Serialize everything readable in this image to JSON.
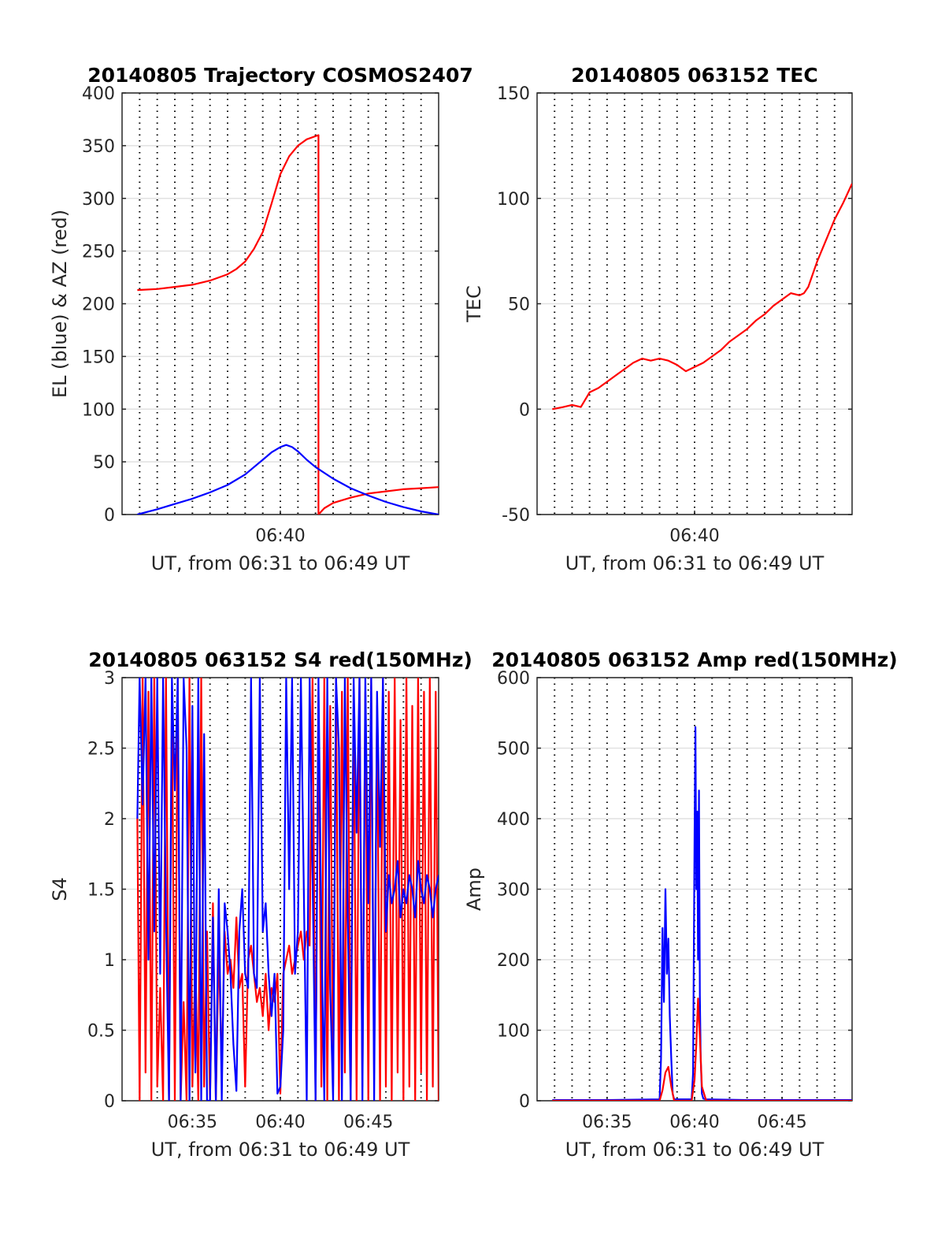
{
  "chart_data": [
    {
      "type": "line",
      "title": "20140805 Trajectory COSMOS2407",
      "xlabel": "UT, from 06:31 to 06:49 UT",
      "ylabel": "EL (blue) & AZ (red)",
      "x_range": [
        "06:31",
        "06:49"
      ],
      "ylim": [
        0,
        400
      ],
      "y_ticks": [
        "0",
        "50",
        "100",
        "150",
        "200",
        "250",
        "300",
        "350",
        "400"
      ],
      "x_tick_labels": [
        "06:40"
      ],
      "grid": true,
      "series": [
        {
          "color": "#ff0000",
          "x": [
            "06:31:52",
            "06:33:00",
            "06:34:00",
            "06:35:00",
            "06:36:00",
            "06:37:00",
            "06:37:30",
            "06:38:00",
            "06:38:30",
            "06:39:00",
            "06:39:30",
            "06:40:00",
            "06:40:30",
            "06:41:00",
            "06:41:30",
            "06:42:10",
            "06:42:10",
            "06:42:30",
            "06:43:00",
            "06:44:00",
            "06:45:00",
            "06:46:00",
            "06:47:00",
            "06:48:00",
            "06:49:00"
          ],
          "values": [
            213,
            214,
            216,
            218,
            222,
            228,
            233,
            240,
            252,
            268,
            295,
            323,
            340,
            350,
            356,
            360,
            0,
            6,
            11,
            16,
            20,
            22,
            24,
            25,
            26
          ]
        },
        {
          "color": "#0000ff",
          "x": [
            "06:31:52",
            "06:33:00",
            "06:34:00",
            "06:35:00",
            "06:36:00",
            "06:37:00",
            "06:38:00",
            "06:38:30",
            "06:39:00",
            "06:39:30",
            "06:40:00",
            "06:40:20",
            "06:40:40",
            "06:41:00",
            "06:41:30",
            "06:42:00",
            "06:43:00",
            "06:44:00",
            "06:45:00",
            "06:46:00",
            "06:47:00",
            "06:48:00",
            "06:49:00"
          ],
          "values": [
            0,
            5,
            10,
            15,
            21,
            28,
            38,
            45,
            52,
            59,
            64,
            66,
            64,
            60,
            52,
            45,
            34,
            25,
            18,
            12,
            7,
            3,
            0
          ]
        }
      ]
    },
    {
      "type": "line",
      "title": "20140805 063152 TEC",
      "xlabel": "UT, from 06:31 to 06:49 UT",
      "ylabel": "TEC",
      "x_range": [
        "06:31",
        "06:49"
      ],
      "ylim": [
        -50,
        150
      ],
      "y_ticks": [
        "-50",
        "0",
        "50",
        "100",
        "150"
      ],
      "x_tick_labels": [
        "06:40"
      ],
      "grid": true,
      "series": [
        {
          "color": "#ff0000",
          "x": [
            "06:31:52",
            "06:32:30",
            "06:33:00",
            "06:33:30",
            "06:34:00",
            "06:34:30",
            "06:35:00",
            "06:35:30",
            "06:36:00",
            "06:36:30",
            "06:37:00",
            "06:37:30",
            "06:38:00",
            "06:38:30",
            "06:39:00",
            "06:39:30",
            "06:40:00",
            "06:40:30",
            "06:41:00",
            "06:41:30",
            "06:42:00",
            "06:42:30",
            "06:43:00",
            "06:43:30",
            "06:44:00",
            "06:44:30",
            "06:45:00",
            "06:45:30",
            "06:46:00",
            "06:46:15",
            "06:46:30",
            "06:47:00",
            "06:47:30",
            "06:48:00",
            "06:48:30",
            "06:49:00"
          ],
          "values": [
            0,
            1,
            2,
            1,
            8,
            10,
            13,
            16,
            19,
            22,
            24,
            23,
            24,
            23,
            21,
            18,
            20,
            22,
            25,
            28,
            32,
            35,
            38,
            42,
            45,
            49,
            52,
            55,
            54,
            55,
            58,
            70,
            80,
            90,
            98,
            107
          ]
        }
      ]
    },
    {
      "type": "line",
      "title": "20140805 063152 S4 red(150MHz)",
      "xlabel": "UT, from 06:31 to 06:49 UT",
      "ylabel": "S4",
      "x_range": [
        "06:31",
        "06:49"
      ],
      "ylim": [
        0,
        3
      ],
      "y_ticks": [
        "0",
        "0.5",
        "1",
        "1.5",
        "2",
        "2.5",
        "3"
      ],
      "x_tick_labels": [
        "06:35",
        "06:40",
        "06:45"
      ],
      "grid": true,
      "series": [
        {
          "color": "#ff0000",
          "x": [
            "06:31:52",
            "06:32:00",
            "06:32:10",
            "06:32:20",
            "06:32:30",
            "06:32:40",
            "06:32:50",
            "06:33:00",
            "06:33:10",
            "06:33:20",
            "06:33:30",
            "06:33:40",
            "06:33:50",
            "06:34:00",
            "06:34:10",
            "06:34:20",
            "06:34:30",
            "06:34:40",
            "06:34:50",
            "06:35:00",
            "06:35:10",
            "06:35:20",
            "06:35:30",
            "06:35:40",
            "06:35:50",
            "06:36:00",
            "06:36:10",
            "06:36:20",
            "06:36:30",
            "06:36:40",
            "06:36:50",
            "06:37:00",
            "06:37:10",
            "06:37:20",
            "06:37:30",
            "06:37:40",
            "06:37:50",
            "06:38:00",
            "06:38:10",
            "06:38:20",
            "06:38:30",
            "06:38:40",
            "06:38:50",
            "06:39:00",
            "06:39:10",
            "06:39:20",
            "06:39:30",
            "06:39:40",
            "06:39:50",
            "06:40:00",
            "06:40:10",
            "06:40:20",
            "06:40:30",
            "06:40:40",
            "06:40:50",
            "06:41:00",
            "06:41:10",
            "06:41:20",
            "06:41:30",
            "06:41:40",
            "06:41:50",
            "06:42:00",
            "06:42:10",
            "06:42:20",
            "06:42:30",
            "06:42:40",
            "06:42:50",
            "06:43:00",
            "06:43:10",
            "06:43:20",
            "06:43:30",
            "06:43:40",
            "06:43:50",
            "06:44:00",
            "06:44:10",
            "06:44:20",
            "06:44:30",
            "06:44:40",
            "06:44:50",
            "06:45:00",
            "06:45:10",
            "06:45:20",
            "06:45:30",
            "06:45:40",
            "06:45:50",
            "06:46:00",
            "06:46:10",
            "06:46:20",
            "06:46:30",
            "06:46:40",
            "06:46:50",
            "06:47:00",
            "06:47:10",
            "06:47:20",
            "06:47:30",
            "06:47:40",
            "06:47:50",
            "06:48:00",
            "06:48:10",
            "06:48:20",
            "06:48:30",
            "06:48:40",
            "06:48:50",
            "06:49:00"
          ],
          "values": [
            2.0,
            0.0,
            3.0,
            0.2,
            2.9,
            0.0,
            3.0,
            0.1,
            0.8,
            0.0,
            3.0,
            0.0,
            2.9,
            0.0,
            3.0,
            0.0,
            0.7,
            0.0,
            3.0,
            0.1,
            1.0,
            0.0,
            3.0,
            0.1,
            1.2,
            0.0,
            1.4,
            0.0,
            1.1,
            0.2,
            1.2,
            0.9,
            1.0,
            0.8,
            1.3,
            0.8,
            0.9,
            0.1,
            1.0,
            1.1,
            0.9,
            0.7,
            0.8,
            0.6,
            0.9,
            0.5,
            0.8,
            0.7,
            0.9,
            0.05,
            0.9,
            1.0,
            1.1,
            0.9,
            1.0,
            1.1,
            1.2,
            1.0,
            1.2,
            1.1,
            3.0,
            0.0,
            2.9,
            0.1,
            3.0,
            0.0,
            2.8,
            0.1,
            3.0,
            0.0,
            2.9,
            0.2,
            3.0,
            0.0,
            2.8,
            0.0,
            3.0,
            0.1,
            2.9,
            0.0,
            3.0,
            0.2,
            2.8,
            0.0,
            3.0,
            0.1,
            2.9,
            0.0,
            3.0,
            0.2,
            2.7,
            0.0,
            3.0,
            0.1,
            2.8,
            0.0,
            3.0,
            0.2,
            2.9,
            0.0,
            3.0,
            0.1,
            2.9,
            0.0
          ]
        },
        {
          "color": "#0000ff",
          "x": [
            "06:31:52",
            "06:32:00",
            "06:32:10",
            "06:32:20",
            "06:32:30",
            "06:32:40",
            "06:32:50",
            "06:33:00",
            "06:33:10",
            "06:33:20",
            "06:33:30",
            "06:33:40",
            "06:33:50",
            "06:34:00",
            "06:34:10",
            "06:34:20",
            "06:34:30",
            "06:34:40",
            "06:34:50",
            "06:35:00",
            "06:35:10",
            "06:35:20",
            "06:35:30",
            "06:35:40",
            "06:35:50",
            "06:36:00",
            "06:36:10",
            "06:36:20",
            "06:36:30",
            "06:36:40",
            "06:36:50",
            "06:37:00",
            "06:37:10",
            "06:37:20",
            "06:37:30",
            "06:37:40",
            "06:37:50",
            "06:38:00",
            "06:38:10",
            "06:38:20",
            "06:38:30",
            "06:38:40",
            "06:38:50",
            "06:39:00",
            "06:39:10",
            "06:39:20",
            "06:39:30",
            "06:39:40",
            "06:39:50",
            "06:40:00",
            "06:40:10",
            "06:40:20",
            "06:40:30",
            "06:40:40",
            "06:40:50",
            "06:41:00",
            "06:41:10",
            "06:41:20",
            "06:41:30",
            "06:41:40",
            "06:41:50",
            "06:42:00",
            "06:42:10",
            "06:42:20",
            "06:42:30",
            "06:42:40",
            "06:42:50",
            "06:43:00",
            "06:43:10",
            "06:43:20",
            "06:43:30",
            "06:43:40",
            "06:43:50",
            "06:44:00",
            "06:44:10",
            "06:44:20",
            "06:44:30",
            "06:44:40",
            "06:44:50",
            "06:45:00",
            "06:45:10",
            "06:45:20",
            "06:45:30",
            "06:45:40",
            "06:45:50",
            "06:46:00",
            "06:46:10",
            "06:46:20",
            "06:46:30",
            "06:46:40",
            "06:46:50",
            "06:47:00",
            "06:47:10",
            "06:47:20",
            "06:47:30",
            "06:47:40",
            "06:47:50",
            "06:48:00",
            "06:48:10",
            "06:48:20",
            "06:48:30",
            "06:48:40",
            "06:48:50",
            "06:49:00"
          ],
          "values": [
            2.0,
            3.0,
            2.1,
            3.0,
            1.0,
            3.0,
            1.2,
            3.0,
            0.9,
            3.0,
            1.3,
            0.0,
            3.0,
            2.2,
            3.0,
            0.0,
            3.0,
            2.5,
            0.0,
            2.8,
            0.2,
            3.0,
            0.0,
            2.6,
            0.0,
            0.0,
            1.3,
            0.0,
            1.5,
            0.0,
            1.4,
            1.2,
            0.9,
            0.4,
            0.07,
            1.2,
            1.5,
            0.9,
            0.8,
            3.0,
            0.9,
            0.8,
            3.0,
            1.2,
            1.4,
            0.9,
            0.6,
            0.9,
            0.05,
            0.1,
            0.5,
            3.0,
            1.5,
            3.0,
            0.9,
            1.2,
            3.0,
            1.5,
            0.0,
            3.0,
            1.6,
            0.0,
            3.0,
            1.2,
            0.0,
            3.0,
            0.8,
            0.0,
            3.0,
            2.5,
            0.0,
            3.0,
            1.3,
            0.0,
            3.0,
            1.9,
            3.0,
            0.0,
            3.0,
            1.4,
            3.0,
            0.0,
            2.9,
            1.8,
            3.0,
            1.2,
            1.6,
            1.4,
            1.5,
            1.7,
            1.3,
            1.5,
            1.4,
            1.6,
            1.5,
            1.3,
            1.7,
            1.5,
            1.4,
            1.6,
            1.5,
            1.3,
            1.5,
            1.6
          ]
        }
      ]
    },
    {
      "type": "line",
      "title": "20140805 063152 Amp red(150MHz)",
      "xlabel": "UT, from 06:31 to 06:49 UT",
      "ylabel": "Amp",
      "x_range": [
        "06:31",
        "06:49"
      ],
      "ylim": [
        0,
        600
      ],
      "y_ticks": [
        "0",
        "100",
        "200",
        "300",
        "400",
        "500",
        "600"
      ],
      "x_tick_labels": [
        "06:35",
        "06:40",
        "06:45"
      ],
      "grid": true,
      "series": [
        {
          "color": "#0000ff",
          "x": [
            "06:31:52",
            "06:35:00",
            "06:38:00",
            "06:38:05",
            "06:38:10",
            "06:38:15",
            "06:38:20",
            "06:38:25",
            "06:38:30",
            "06:38:35",
            "06:38:40",
            "06:38:45",
            "06:38:50",
            "06:39:00",
            "06:39:30",
            "06:39:50",
            "06:39:55",
            "06:40:00",
            "06:40:03",
            "06:40:06",
            "06:40:09",
            "06:40:12",
            "06:40:15",
            "06:40:18",
            "06:40:21",
            "06:40:25",
            "06:40:30",
            "06:40:40",
            "06:43:00",
            "06:46:00",
            "06:49:00"
          ],
          "values": [
            1,
            1,
            2,
            60,
            245,
            140,
            300,
            180,
            230,
            120,
            60,
            10,
            2,
            2,
            2,
            2,
            40,
            380,
            530,
            300,
            410,
            200,
            440,
            150,
            60,
            10,
            3,
            2,
            1,
            1,
            1
          ]
        },
        {
          "color": "#ff0000",
          "x": [
            "06:31:52",
            "06:38:00",
            "06:38:10",
            "06:38:20",
            "06:38:30",
            "06:38:40",
            "06:38:50",
            "06:39:50",
            "06:40:00",
            "06:40:06",
            "06:40:12",
            "06:40:18",
            "06:40:25",
            "06:40:40",
            "06:49:00"
          ],
          "values": [
            0,
            0,
            15,
            40,
            48,
            20,
            0,
            0,
            30,
            80,
            145,
            90,
            20,
            0,
            0
          ]
        }
      ]
    }
  ]
}
